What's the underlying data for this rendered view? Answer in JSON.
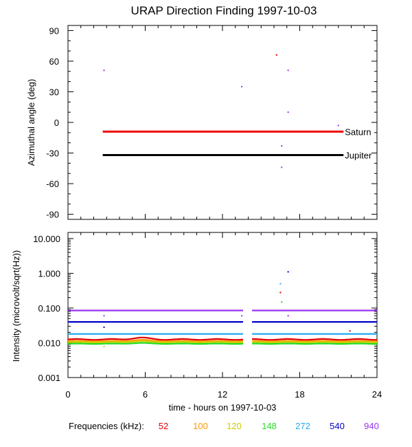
{
  "title": "URAP Direction Finding  1997-10-03",
  "x_axis": {
    "label": "time - hours on 1997-10-03",
    "ticks": [
      0,
      6,
      12,
      18,
      24
    ],
    "tick_labels": [
      "0",
      "6",
      "12",
      "18",
      "24"
    ],
    "range": [
      0,
      24
    ],
    "minor_step": 1
  },
  "legend": {
    "prefix": "Frequencies (kHz):",
    "entries": [
      {
        "label": "52",
        "color": "#e00000"
      },
      {
        "label": "100",
        "color": "#ff9900"
      },
      {
        "label": "120",
        "color": "#cccc00"
      },
      {
        "label": "148",
        "color": "#22dd22"
      },
      {
        "label": "272",
        "color": "#22aaee"
      },
      {
        "label": "540",
        "color": "#0000cc"
      },
      {
        "label": "940",
        "color": "#9933ee"
      }
    ]
  },
  "chart_data": [
    {
      "type": "scatter",
      "ylabel": "Azimuthal angle (deg)",
      "ylim": [
        -95,
        95
      ],
      "y_ticks": [
        90,
        60,
        30,
        0,
        -30,
        -60,
        -90
      ],
      "y_tick_labels": [
        "90",
        "60",
        "30",
        "0",
        "-30",
        "-60",
        "-90"
      ],
      "y_minor_step": 10,
      "reference_lines": [
        {
          "name": "Saturn",
          "y": -9,
          "x": [
            2.7,
            21.4
          ],
          "color": "#ee0000"
        },
        {
          "name": "Jupiter",
          "y": -32,
          "x": [
            2.7,
            21.4
          ],
          "color": "#000000"
        }
      ],
      "points": [
        {
          "x": 2.8,
          "y": 51,
          "color": "#9933ee"
        },
        {
          "x": 13.5,
          "y": 35,
          "color": "#9933ee"
        },
        {
          "x": 16.2,
          "y": 66,
          "color": "#e00000"
        },
        {
          "x": 17.1,
          "y": 51,
          "color": "#9933ee"
        },
        {
          "x": 17.1,
          "y": 10,
          "color": "#9933ee"
        },
        {
          "x": 16.6,
          "y": -23,
          "color": "#9933ee"
        },
        {
          "x": 16.6,
          "y": -44,
          "color": "#9933ee"
        },
        {
          "x": 21.0,
          "y": -3,
          "color": "#9933ee"
        }
      ]
    },
    {
      "type": "line",
      "ylabel": "Intensity (microvolt/sqrt(Hz))",
      "yscale": "log",
      "ylim": [
        0.001,
        15
      ],
      "y_ticks": [
        10,
        1,
        0.1,
        0.01,
        0.001
      ],
      "y_tick_labels": [
        "10.000",
        "1.000",
        "0.100",
        "0.010",
        "0.001"
      ],
      "gap_hours": [
        13.6,
        14.2
      ],
      "series": [
        {
          "name": "940",
          "color": "#9933ee",
          "base": 0.085,
          "mod": 0.0
        },
        {
          "name": "540",
          "color": "#0000cc",
          "base": 0.04,
          "mod": 0.0
        },
        {
          "name": "272",
          "color": "#22aaee",
          "base": 0.018,
          "mod": 0.0
        },
        {
          "name": "52",
          "color": "#e00000",
          "base": 0.0125,
          "mod": 0.12
        },
        {
          "name": "100",
          "color": "#ff9900",
          "base": 0.0112,
          "mod": 0.08
        },
        {
          "name": "120",
          "color": "#cccc00",
          "base": 0.0104,
          "mod": 0.06
        },
        {
          "name": "148",
          "color": "#22dd22",
          "base": 0.0094,
          "mod": 0.05
        }
      ],
      "spikes": [
        {
          "x": 16.5,
          "y": 0.5,
          "color": "#22aaee"
        },
        {
          "x": 16.5,
          "y": 0.28,
          "color": "#e00000"
        },
        {
          "x": 16.6,
          "y": 0.15,
          "color": "#22dd22"
        },
        {
          "x": 17.1,
          "y": 1.1,
          "color": "#0000cc"
        },
        {
          "x": 17.1,
          "y": 0.06,
          "color": "#9933ee"
        },
        {
          "x": 2.8,
          "y": 0.06,
          "color": "#9933ee"
        },
        {
          "x": 2.8,
          "y": 0.028,
          "color": "#0000cc"
        },
        {
          "x": 13.5,
          "y": 0.06,
          "color": "#9933ee"
        },
        {
          "x": 21.9,
          "y": 0.022,
          "color": "#e00000"
        },
        {
          "x": 2.8,
          "y": 0.0078,
          "color": "#cccc00"
        }
      ]
    }
  ]
}
